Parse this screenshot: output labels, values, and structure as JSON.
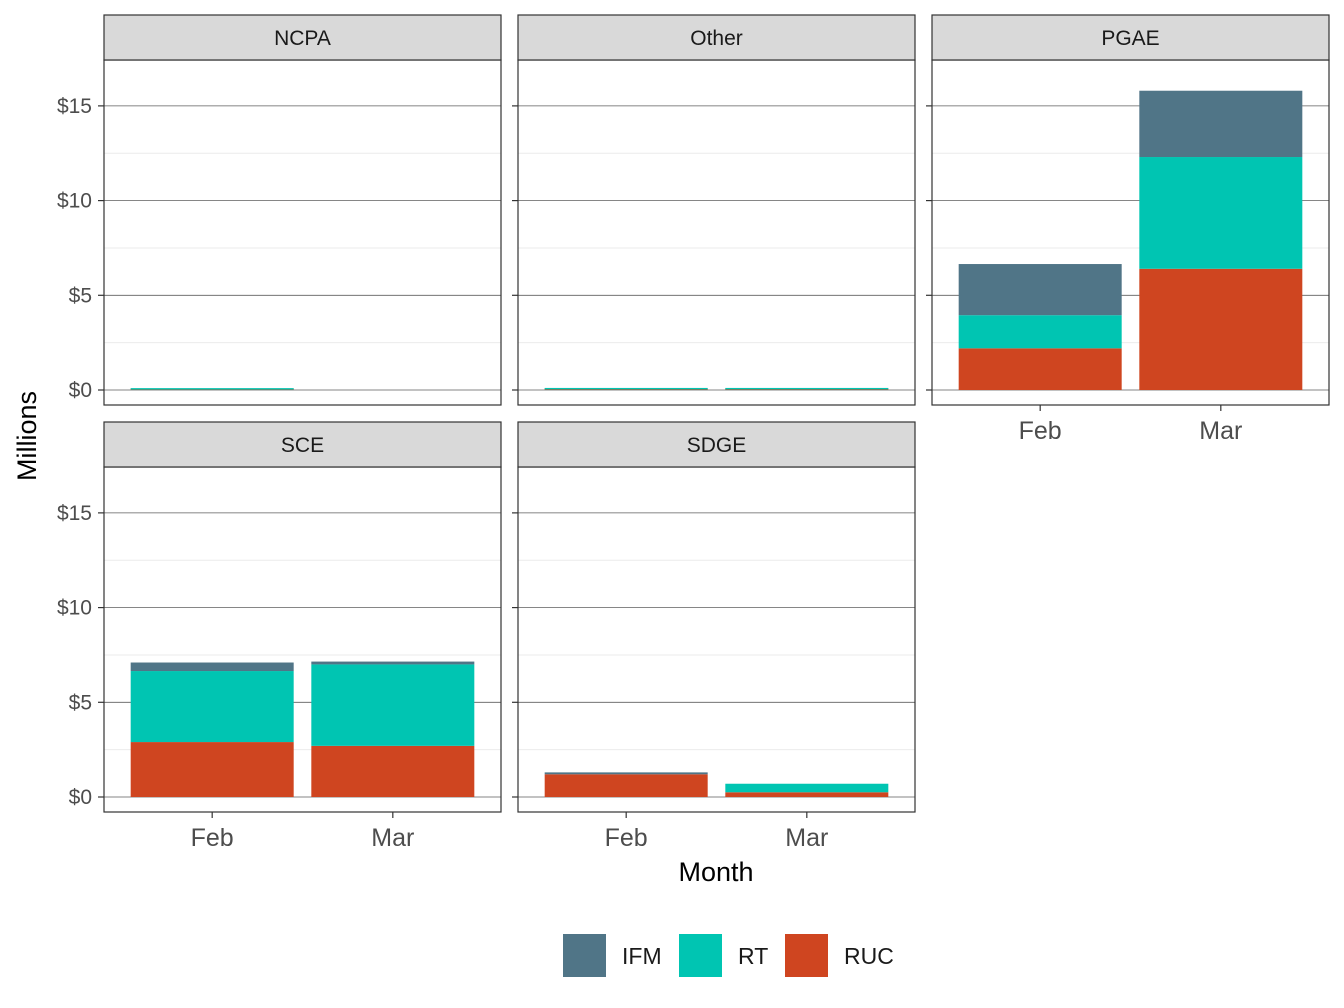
{
  "chart_data": {
    "type": "bar",
    "stacked": true,
    "faceted": true,
    "facet_layout": {
      "ncol": 3,
      "nrow": 2,
      "scales": "free_x"
    },
    "xlabel": "Month",
    "ylabel": "Millions",
    "ylim": [
      0,
      17
    ],
    "y_ticks": [
      0,
      5,
      10,
      15
    ],
    "y_tick_labels": [
      "$0",
      "$5",
      "$10",
      "$15"
    ],
    "categories": [
      "Feb",
      "Mar"
    ],
    "grid": true,
    "legend_position": "bottom",
    "series": [
      {
        "name": "IFM",
        "color": "#507587"
      },
      {
        "name": "RT",
        "color": "#00C5B2"
      },
      {
        "name": "RUC",
        "color": "#CF4520"
      }
    ],
    "stack_order": [
      "RUC",
      "RT",
      "IFM"
    ],
    "facets": [
      {
        "name": "NCPA",
        "values": {
          "IFM": [
            0.0,
            0.0
          ],
          "RT": [
            0.04,
            0.0
          ],
          "RUC": [
            0.02,
            0.0
          ]
        }
      },
      {
        "name": "Other",
        "values": {
          "IFM": [
            0.0,
            0.0
          ],
          "RT": [
            0.06,
            0.06
          ],
          "RUC": [
            0.03,
            0.03
          ]
        }
      },
      {
        "name": "PGAE",
        "values": {
          "IFM": [
            2.7,
            3.5
          ],
          "RT": [
            1.75,
            5.9
          ],
          "RUC": [
            2.2,
            6.4
          ]
        }
      },
      {
        "name": "SCE",
        "values": {
          "IFM": [
            0.45,
            0.15
          ],
          "RT": [
            3.75,
            4.3
          ],
          "RUC": [
            2.9,
            2.7
          ]
        }
      },
      {
        "name": "SDGE",
        "values": {
          "IFM": [
            0.1,
            0.0
          ],
          "RT": [
            0.0,
            0.45
          ],
          "RUC": [
            1.2,
            0.25
          ]
        }
      }
    ]
  }
}
